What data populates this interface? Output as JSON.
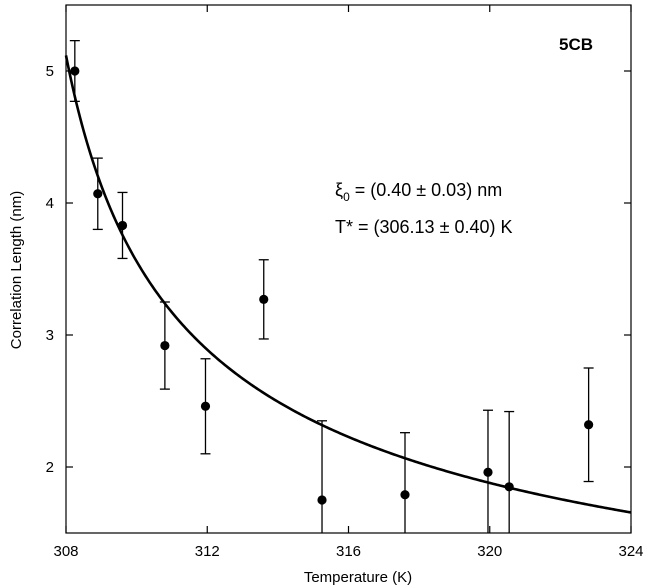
{
  "chart_data": {
    "type": "scatter",
    "xlabel": "Temperature  (K)",
    "ylabel": "Correlation Length  (nm)",
    "xlim": [
      308,
      324
    ],
    "ylim": [
      1.5,
      5.5
    ],
    "x_ticks": [
      308,
      312,
      316,
      320,
      324
    ],
    "y_ticks": [
      2,
      3,
      4,
      5
    ],
    "x_tick_labels": [
      "308",
      "312",
      "316",
      "320",
      "324"
    ],
    "y_tick_labels": [
      "2",
      "3",
      "4",
      "5"
    ],
    "sample_label": "5CB",
    "annotation": {
      "xi_symbol": "ξ",
      "xi_subscript": "0",
      "xi_text": " = (0.40 ± 0.03) nm",
      "t_text": "T* = (306.13 ± 0.40) K"
    },
    "fit": {
      "xi0": 0.4,
      "T_star": 306.13,
      "exponent": -0.5
    },
    "series": [
      {
        "x": [
          308.25,
          308.9,
          309.6,
          310.8,
          311.95,
          313.6,
          315.25,
          317.6,
          319.95,
          320.55,
          322.8
        ],
        "y": [
          5.0,
          4.07,
          3.83,
          2.92,
          2.46,
          3.27,
          1.75,
          1.79,
          1.96,
          1.85,
          2.32
        ],
        "err": [
          0.23,
          0.27,
          0.25,
          0.33,
          0.36,
          0.3,
          0.6,
          0.47,
          0.47,
          0.57,
          0.43
        ]
      }
    ],
    "grid": false,
    "legend": "none"
  }
}
